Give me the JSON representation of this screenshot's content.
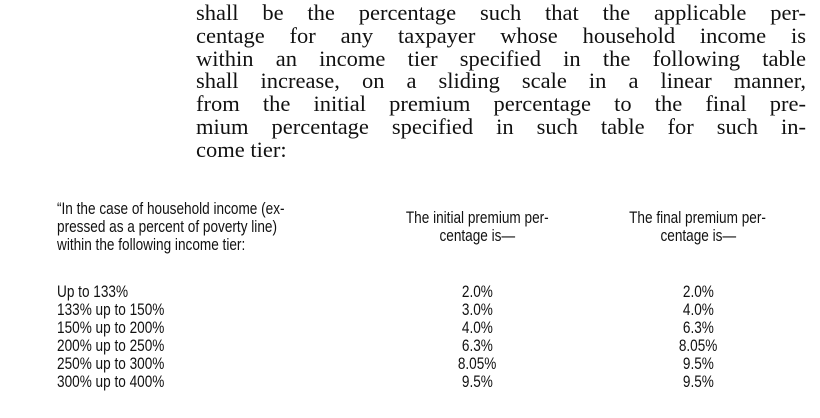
{
  "paragraph_lines": [
    "shall be the percentage such that the applicable per-",
    "centage for any taxpayer whose household income is",
    "within an income tier specified in the following table",
    "shall increase, on a sliding scale in a linear manner,",
    "from the initial premium percentage to the final pre-",
    "mium percentage specified in such table for such in-",
    "come tier:"
  ],
  "table": {
    "headers": {
      "tier": [
        "“In the case of household income (ex-",
        "pressed as a percent of poverty line)",
        "within the following income tier:"
      ],
      "initial": [
        "The initial premium per-",
        "centage is—"
      ],
      "final": [
        "The final premium per-",
        "centage is—"
      ]
    },
    "rows": [
      {
        "tier": "Up to 133%",
        "initial": "2.0%",
        "final": "2.0%"
      },
      {
        "tier": "133% up to 150%",
        "initial": "3.0%",
        "final": "4.0%"
      },
      {
        "tier": "150% up to 200%",
        "initial": "4.0%",
        "final": "6.3%"
      },
      {
        "tier": "200% up to 250%",
        "initial": "6.3%",
        "final": "8.05%"
      },
      {
        "tier": "250% up to 300%",
        "initial": "8.05%",
        "final": "9.5%"
      },
      {
        "tier": "300% up to 400%",
        "initial": "9.5%",
        "final": "9.5%"
      }
    ]
  }
}
